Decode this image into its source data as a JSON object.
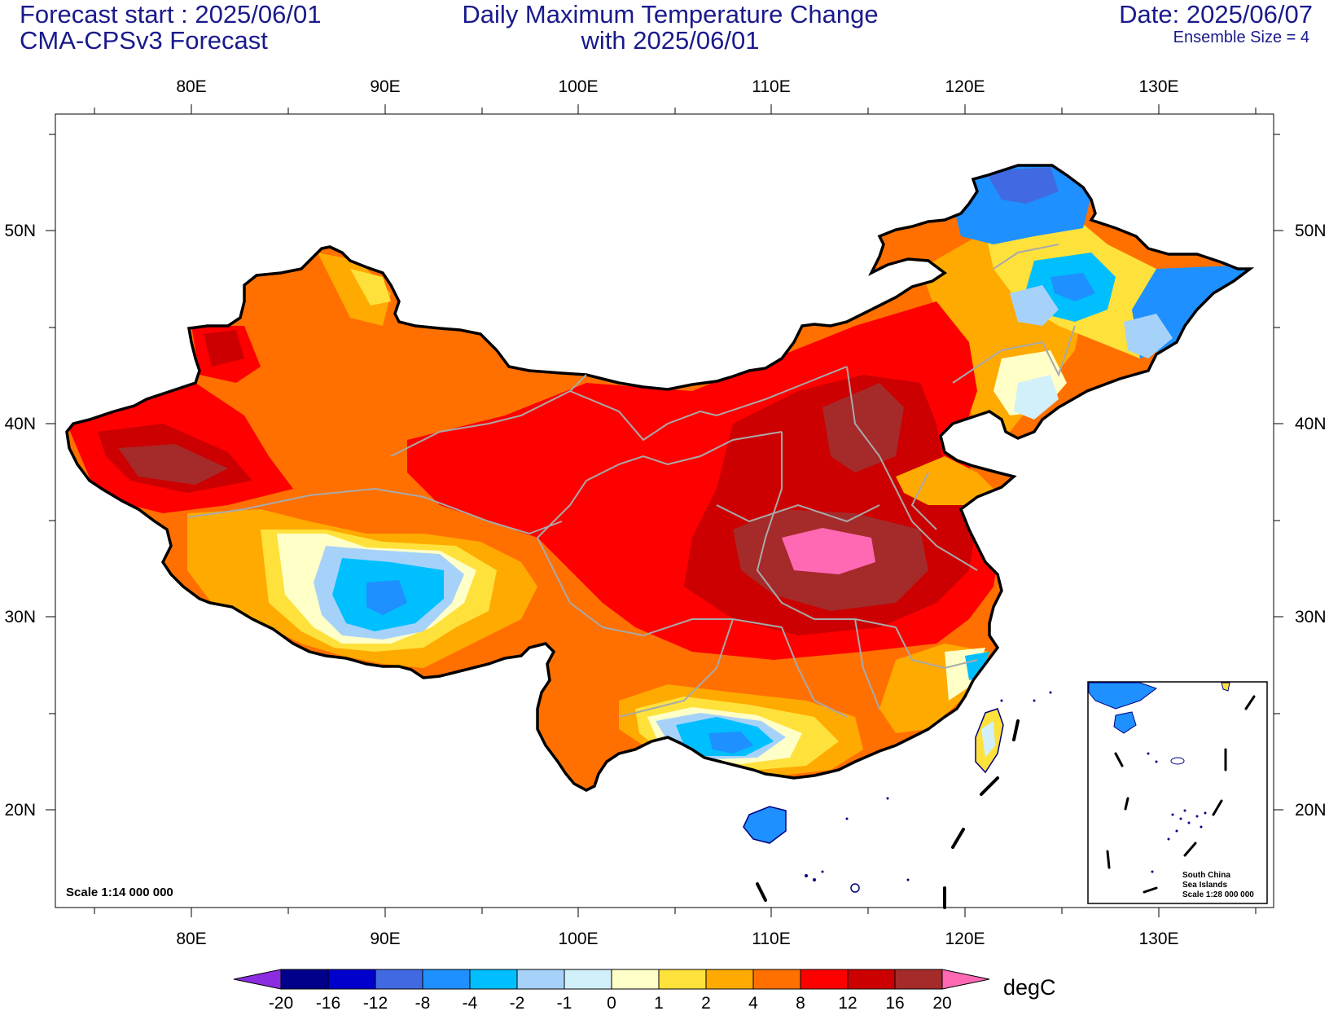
{
  "header": {
    "forecast_start": "Forecast start : 2025/06/01",
    "model": "CMA-CPSv3 Forecast",
    "title_line1": "Daily Maximum Temperature Change",
    "title_line2": "with 2025/06/01",
    "date": "Date: 2025/06/07",
    "ensemble": "Ensemble Size = 4"
  },
  "map": {
    "lon_labels": [
      "80E",
      "90E",
      "100E",
      "110E",
      "120E",
      "130E"
    ],
    "lat_labels": [
      "50N",
      "40N",
      "30N",
      "20N"
    ],
    "scale_note": "Scale 1:14 000 000",
    "inset_title_line1": "South China",
    "inset_title_line2": "Sea Islands",
    "inset_scale": "Scale 1:28 000 000"
  },
  "colorbar": {
    "unit": "degC",
    "levels": [
      "-20",
      "-16",
      "-12",
      "-8",
      "-4",
      "-2",
      "-1",
      "0",
      "1",
      "2",
      "4",
      "8",
      "12",
      "16",
      "20"
    ],
    "colors": [
      "#8b2be2",
      "#00008b",
      "#0000cd",
      "#4169e1",
      "#1e90ff",
      "#00bfff",
      "#a6d2fa",
      "#d1f0fa",
      "#ffffc8",
      "#ffe13c",
      "#ffaa00",
      "#ff7000",
      "#ff0000",
      "#cc0000",
      "#a52a2a",
      "#ff69b4"
    ]
  }
}
